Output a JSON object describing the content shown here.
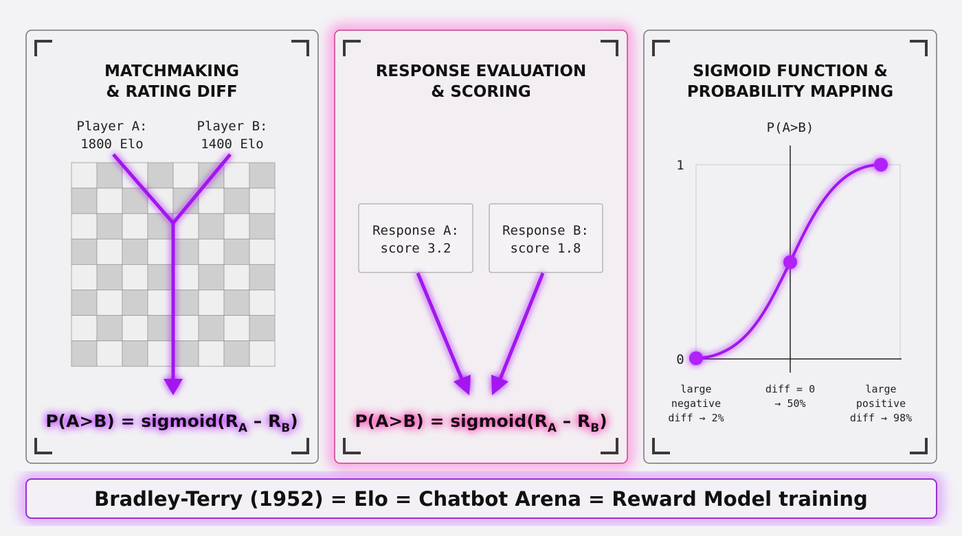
{
  "panels": [
    {
      "title": [
        "MATCHMAKING",
        "& RATING DIFF"
      ],
      "players": [
        [
          "Player A:",
          "1800 Elo"
        ],
        [
          "Player B:",
          "1400 Elo"
        ]
      ],
      "formula": [
        "P(A>B) = sigmoid(R",
        "A",
        " – R",
        "B",
        ")"
      ]
    },
    {
      "title": [
        "RESPONSE EVALUATION",
        "& SCORING"
      ],
      "responses": [
        [
          "Response A:",
          "score 3.2"
        ],
        [
          "Response B:",
          "score 1.8"
        ]
      ],
      "formula": [
        "P(A>B) = sigmoid(R",
        "A",
        " – R",
        "B",
        ")"
      ]
    },
    {
      "title": [
        "SIGMOID FUNCTION &",
        "PROBABILITY MAPPING"
      ],
      "y_axis_label": "P(A>B)",
      "y_ticks": [
        "1",
        "0"
      ],
      "x_labels": [
        [
          "large",
          "negative",
          "diff → 2%"
        ],
        [
          "diff = 0",
          "→ 50%"
        ],
        [
          "large",
          "positive",
          "diff → 98%"
        ]
      ]
    }
  ],
  "footer": "Bradley-Terry (1952) = Elo = Chatbot Arena = Reward Model training"
}
